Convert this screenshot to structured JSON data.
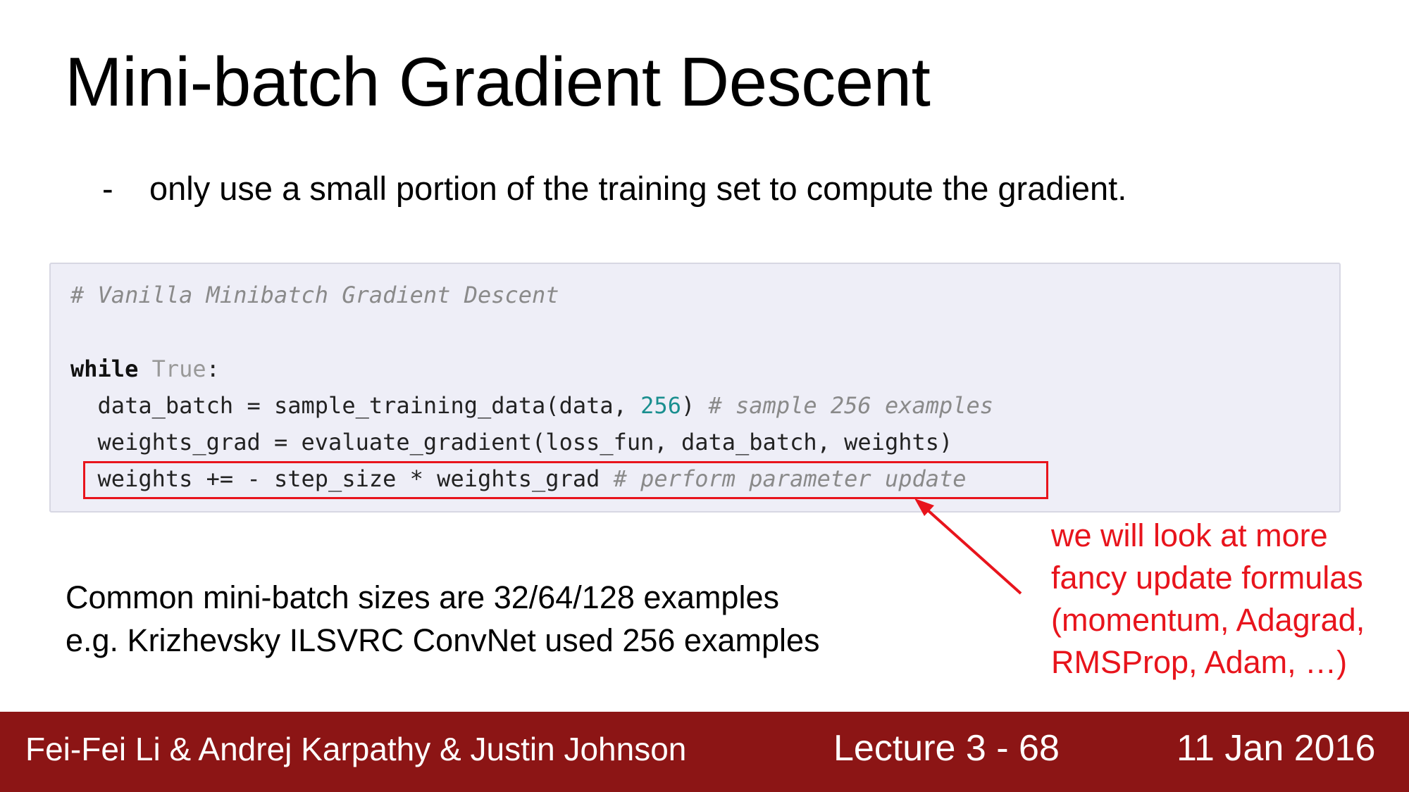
{
  "slide": {
    "title": "Mini-batch Gradient Descent",
    "bullet_marker": "-",
    "bullet_text": "only use a small portion of the training set to compute the gradient."
  },
  "code": {
    "line1_comment": "# Vanilla Minibatch Gradient Descent",
    "line2_keyword": "while",
    "line2_const": "True",
    "line2_colon": ":",
    "line3_code_a": "  data_batch = sample_training_data(data, ",
    "line3_num": "256",
    "line3_code_b": ") ",
    "line3_comment": "# sample 256 examples",
    "line4_code": "  weights_grad = evaluate_gradient(loss_fun, data_batch, weights)",
    "line5_code": "  weights += - step_size * weights_grad ",
    "line5_comment": "# perform parameter update"
  },
  "body_text": {
    "line1": "Common mini-batch sizes are 32/64/128 examples",
    "line2": "e.g. Krizhevsky ILSVRC ConvNet used 256 examples"
  },
  "annotation": {
    "line1": "we will look at more",
    "line2": "fancy update formulas",
    "line3": "(momentum, Adagrad,",
    "line4": "RMSProp, Adam, …)",
    "color": "#e8141c"
  },
  "footer": {
    "authors": "Fei-Fei Li & Andrej Karpathy & Justin Johnson",
    "lecture": "Lecture 3 - 68",
    "date": "11 Jan 2016",
    "background": "#8c1515"
  }
}
